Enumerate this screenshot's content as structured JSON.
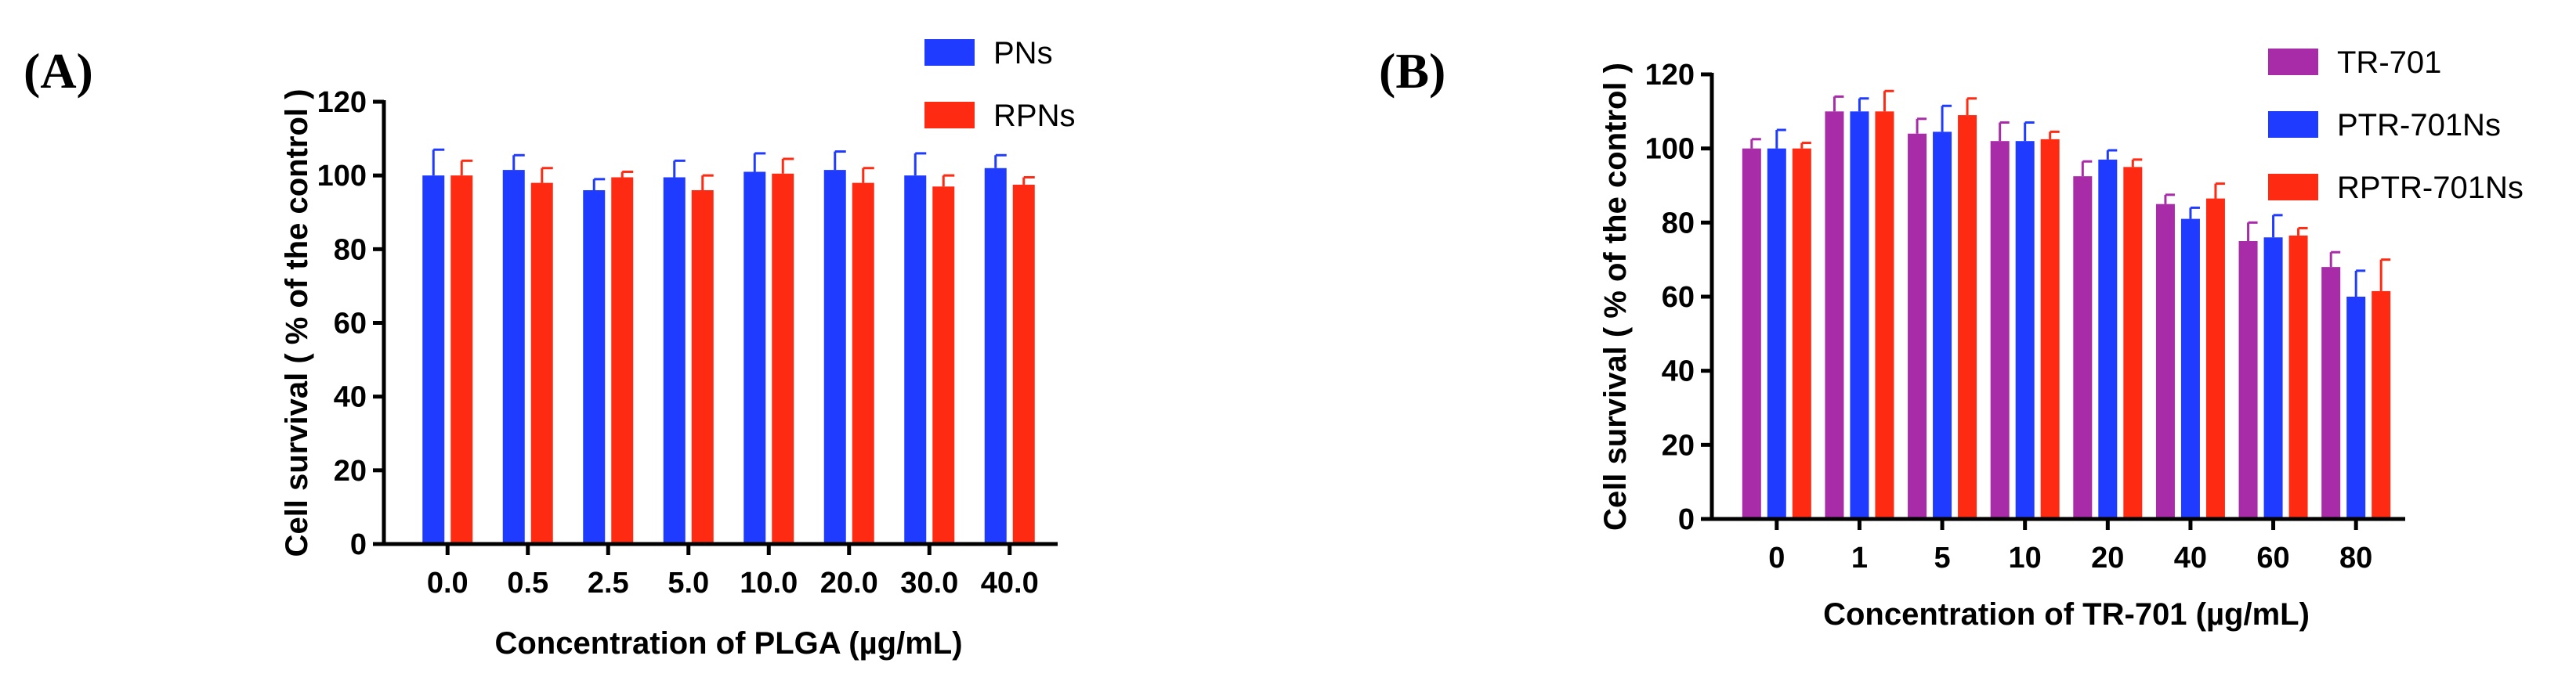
{
  "panels": [
    {
      "label": "(A)"
    },
    {
      "label": "(B)"
    }
  ],
  "chart_data": [
    {
      "type": "bar",
      "panel": "(A)",
      "title": "",
      "xlabel": "Concentration of PLGA (µg/mL)",
      "ylabel": "Cell survival ( % of the control )",
      "ylim": [
        0,
        120
      ],
      "yticks": [
        0,
        20,
        40,
        60,
        80,
        100,
        120
      ],
      "categories": [
        "0.0",
        "0.5",
        "2.5",
        "5.0",
        "10.0",
        "20.0",
        "30.0",
        "40.0"
      ],
      "legend_position": "top-right",
      "series": [
        {
          "name": "PNs",
          "color": "#1f3bff",
          "values": [
            100,
            101.5,
            96,
            99.5,
            101,
            101.5,
            100,
            102
          ],
          "errors": [
            7,
            4,
            3,
            4.5,
            5,
            5,
            6,
            3.5
          ]
        },
        {
          "name": "RPNs",
          "color": "#ff2a12",
          "values": [
            100,
            98,
            99.5,
            96,
            100.5,
            98,
            97,
            97.5
          ],
          "errors": [
            4,
            4,
            1.5,
            4,
            4,
            4,
            3,
            2
          ]
        }
      ]
    },
    {
      "type": "bar",
      "panel": "(B)",
      "title": "",
      "xlabel": "Concentration of TR-701 (µg/mL)",
      "ylabel": "Cell survival ( % of the control )",
      "ylim": [
        0,
        120
      ],
      "yticks": [
        0,
        20,
        40,
        60,
        80,
        100,
        120
      ],
      "categories": [
        "0",
        "1",
        "5",
        "10",
        "20",
        "40",
        "60",
        "80"
      ],
      "legend_position": "top-right",
      "series": [
        {
          "name": "TR-701",
          "color": "#a82ba8",
          "values": [
            100,
            110,
            104,
            102,
            92.5,
            85,
            75,
            68
          ],
          "errors": [
            2.5,
            4,
            4,
            5,
            4,
            2.5,
            5,
            4
          ]
        },
        {
          "name": "PTR-701Ns",
          "color": "#1f3bff",
          "values": [
            100,
            110,
            104.5,
            102,
            97,
            81,
            76,
            60
          ],
          "errors": [
            5,
            3.5,
            7,
            5,
            2.5,
            3,
            6,
            7
          ]
        },
        {
          "name": "RPTR-701Ns",
          "color": "#ff2a12",
          "values": [
            100,
            110,
            109,
            102.5,
            95,
            86.5,
            76.5,
            61.5
          ],
          "errors": [
            1.5,
            5.5,
            4.5,
            2,
            2,
            4,
            2,
            8.5
          ]
        }
      ]
    }
  ]
}
